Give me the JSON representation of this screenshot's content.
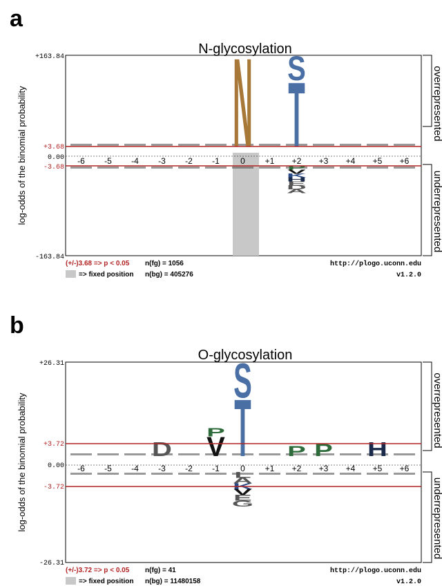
{
  "colors": {
    "threshold": "#b22222",
    "fixed": "#c8c8c8",
    "axis": "#000000",
    "N": "#a87838",
    "T": "#4a6fa5",
    "S": "#4a6fa5",
    "P": "#2e6b3a",
    "H": "#1a2a4a",
    "V": "#111111",
    "K": "#2a4a8a",
    "other": "#555555"
  },
  "chart_data": [
    {
      "type": "sequence-logo",
      "panel_letter": "a",
      "title": "N-glycosylation",
      "ylabel": "log-odds of the binomial probability",
      "y_top_label": "+163.84",
      "y_bottom_label": "-163.84",
      "y_zero_label": "0.00",
      "threshold_pos_label": "+3.68",
      "threshold_neg_label": "-3.68",
      "ylim": [
        -163.84,
        163.84
      ],
      "threshold": 3.68,
      "positions": [
        "-6",
        "-5",
        "-4",
        "-3",
        "-2",
        "-1",
        "0",
        "+1",
        "+2",
        "+3",
        "+4",
        "+5",
        "+6"
      ],
      "right_label_top": "overrepresented",
      "right_label_bottom": "underrepresented",
      "fixed_position": "0",
      "over_letters": [
        {
          "pos": "0",
          "letter": "N",
          "value": 163.84
        },
        {
          "pos": "+2",
          "letter": "T",
          "value": 120
        },
        {
          "pos": "+2",
          "letter": "S",
          "value": 45
        }
      ],
      "under_letters": [
        {
          "pos": "+2",
          "letters": [
            "P",
            "V",
            "K",
            "H",
            "E",
            "D",
            "A"
          ],
          "value": -50
        }
      ],
      "legend_threshold": "(+/-)3.68 => p < 0.05",
      "legend_fixed": "=> fixed position",
      "n_fg": "n(fg) = 1056",
      "n_bg": "n(bg) = 405276",
      "url": "http://plogo.uconn.edu",
      "version": "v1.2.0"
    },
    {
      "type": "sequence-logo",
      "panel_letter": "b",
      "title": "O-glycosylation",
      "ylabel": "log-odds of the binomial probability",
      "y_top_label": "+26.31",
      "y_bottom_label": "-26.31",
      "y_zero_label": "0.00",
      "threshold_pos_label": "+3.72",
      "threshold_neg_label": "-3.72",
      "ylim": [
        -26.31,
        26.31
      ],
      "threshold": 3.72,
      "positions": [
        "-6",
        "-5",
        "-4",
        "-3",
        "-2",
        "-1",
        "0",
        "+1",
        "+2",
        "+3",
        "+4",
        "+5",
        "+6"
      ],
      "right_label_top": "overrepresented",
      "right_label_bottom": "underrepresented",
      "fixed_position": "0",
      "over_letters": [
        {
          "pos": "0",
          "letter": "T",
          "value": 26.31
        },
        {
          "pos": "0",
          "letter": "S",
          "value": 16
        },
        {
          "pos": "-1",
          "letter": "P",
          "value": 2.5
        },
        {
          "pos": "-1",
          "letter": "V",
          "value": 5.5
        },
        {
          "pos": "-3",
          "letter": "D",
          "value": 4
        },
        {
          "pos": "+2",
          "letter": "P",
          "value": 3
        },
        {
          "pos": "+3",
          "letter": "P",
          "value": 3.5
        },
        {
          "pos": "+5",
          "letter": "H",
          "value": 4
        }
      ],
      "under_letters": [
        {
          "pos": "0",
          "letters": [
            "L",
            "A",
            "K",
            "V",
            "E",
            "G"
          ],
          "value": -10
        }
      ],
      "legend_threshold": "(+/-)3.72 => p < 0.05",
      "legend_fixed": "=> fixed position",
      "n_fg": "n(fg) = 41",
      "n_bg": "n(bg) = 11480158",
      "url": "http://plogo.uconn.edu",
      "version": "v1.2.0"
    }
  ]
}
